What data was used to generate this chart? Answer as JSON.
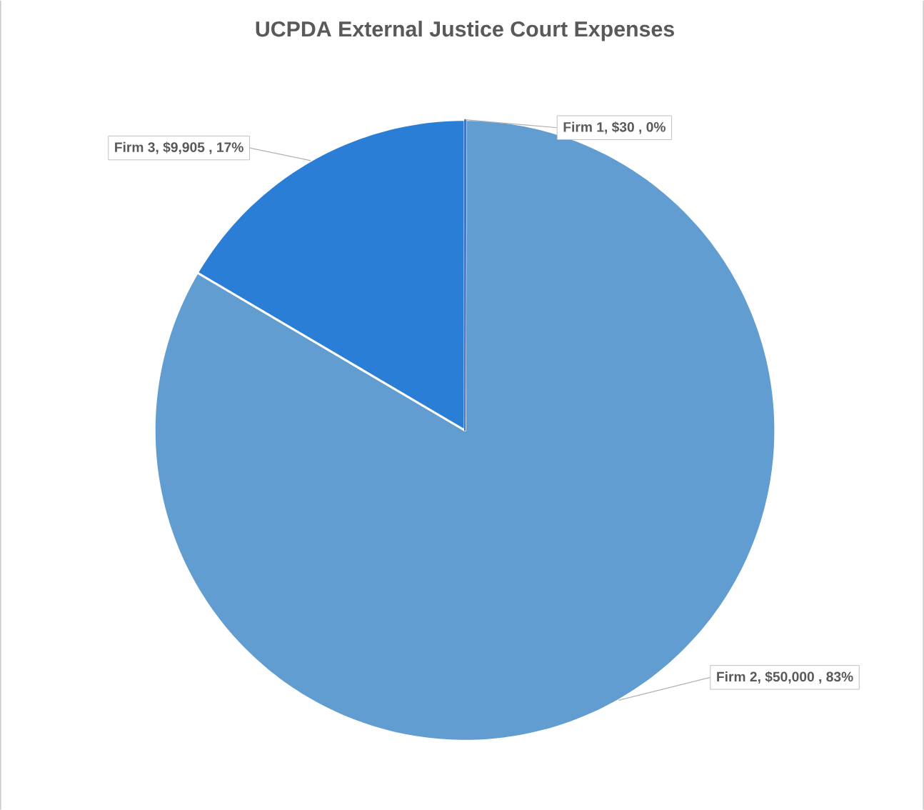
{
  "chart_data": {
    "type": "pie",
    "title": "UCPDA External Justice Court Expenses",
    "categories": [
      "Firm 1",
      "Firm 2",
      "Firm 3"
    ],
    "values": [
      30,
      50000,
      9905
    ],
    "value_labels": [
      ",  $30 , 0%",
      ",  $50,000 , 83%",
      ",  $9,905 , 17%"
    ],
    "colors": [
      "#4472c4",
      "#629dd1",
      "#2a7ed6"
    ]
  }
}
